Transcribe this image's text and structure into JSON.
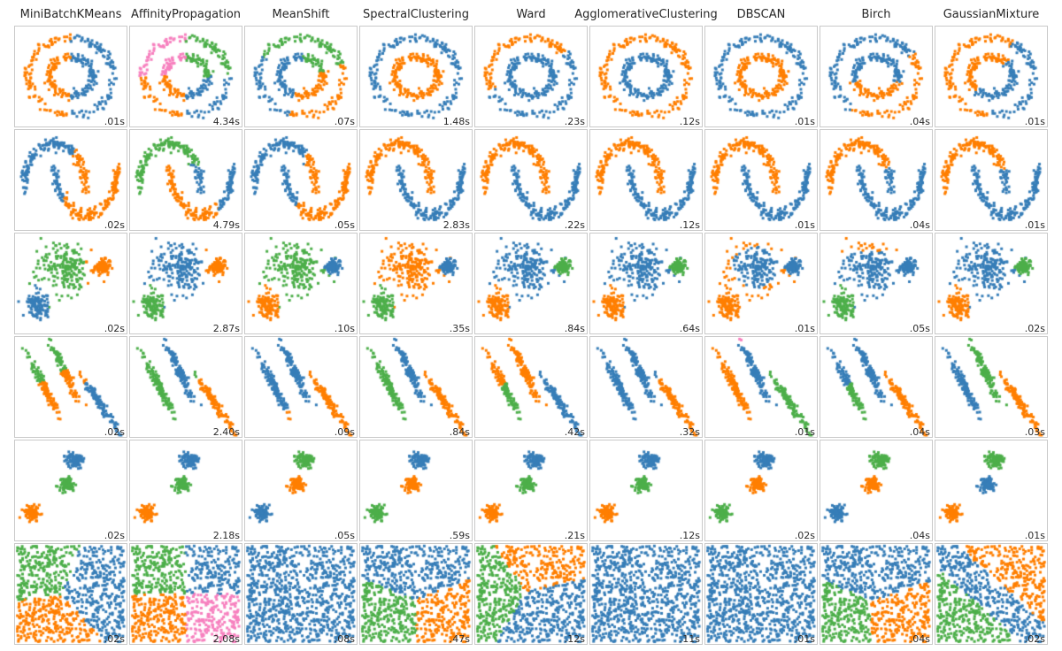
{
  "figure": {
    "background": "#ffffff",
    "cell_border_color": "#c9c9c9",
    "title_color": "#262626",
    "timing_text_color": "#2b2b2b"
  },
  "palette": {
    "blue": "#377eb8",
    "orange": "#ff7f00",
    "green": "#4daf4a",
    "pink": "#f781bf"
  },
  "chart_data": {
    "type": "scatter",
    "layout": "grid of 9 algorithm columns x 6 dataset rows, timing label bottom-right of each cell, no axes ticks, no legend",
    "columns": [
      "MiniBatchKMeans",
      "AffinityPropagation",
      "MeanShift",
      "SpectralClustering",
      "Ward",
      "AgglomerativeClustering",
      "DBSCAN",
      "Birch",
      "GaussianMixture"
    ],
    "rows": [
      "noisy_circles",
      "noisy_moons",
      "varied_variance_blobs",
      "anisotropic_blobs",
      "blobs",
      "no_structure_uniform"
    ],
    "timings": [
      [
        ".01s",
        "4.34s",
        ".07s",
        "1.48s",
        ".23s",
        ".12s",
        ".01s",
        ".04s",
        ".01s"
      ],
      [
        ".02s",
        "4.79s",
        ".05s",
        "2.83s",
        ".22s",
        ".12s",
        ".01s",
        ".04s",
        ".01s"
      ],
      [
        ".02s",
        "2.87s",
        ".10s",
        ".35s",
        ".84s",
        ".64s",
        ".01s",
        ".05s",
        ".02s"
      ],
      [
        ".02s",
        "2.40s",
        ".09s",
        ".84s",
        ".42s",
        ".32s",
        ".01s",
        ".04s",
        ".03s"
      ],
      [
        ".02s",
        "2.18s",
        ".05s",
        ".59s",
        ".21s",
        ".12s",
        ".02s",
        ".04s",
        ".01s"
      ],
      [
        ".02s",
        "2.08s",
        ".08s",
        ".47s",
        ".12s",
        ".11s",
        ".01s",
        ".04s",
        ".02s"
      ]
    ],
    "cell_rules": [
      [
        "circ-kmeans",
        "circ-affinity",
        "circ-meanshift",
        "circ-two-a",
        "circ-ward",
        "circ-two-b",
        "circ-two-a",
        "circ-birch",
        "circ-gmm"
      ],
      [
        "moon-kmeans",
        "moon-affinity",
        "moon-meanshift",
        "moon-perfect",
        "moon-perfect",
        "moon-perfect",
        "moon-perfect",
        "moon-birch",
        "moon-gmm"
      ],
      [
        "var-kmeans",
        "var-affinity",
        "var-meanshift",
        "var-spectral",
        "var-ward",
        "var-ward",
        "var-dbscan",
        "var-birch",
        "var-gmm"
      ],
      [
        "ani-kmeans",
        "ani-affinity",
        "ani-meanshift",
        "ani-spectral",
        "ani-ward",
        "ani-agglo",
        "ani-dbscan",
        "ani-birch",
        "ani-gmm"
      ],
      [
        "perm:blue,green,orange",
        "perm:blue,green,orange",
        "perm:green,orange,blue",
        "perm:blue,orange,green",
        "perm:blue,green,orange",
        "perm:blue,green,orange",
        "perm:blue,orange,green",
        "perm:green,orange,blue",
        "perm:green,blue,orange"
      ],
      [
        "vor:green@0.22,0.28|orange@0.30,0.78|blue@0.72,0.45",
        "vor:green@0.25,0.25|blue@0.75,0.25|orange@0.25,0.75|pink@0.75,0.75",
        "uni-single",
        "vor:blue@0.50,0.20|green@0.24,0.80|orange@0.76,0.80",
        "vor:green@0.13,0.42|orange@0.55,0.16|blue@0.68,0.72",
        "uni-single",
        "uni-single",
        "vor:blue@0.50,0.25|green@0.22,0.80|orange@0.70,0.78",
        "uni-gmm"
      ]
    ]
  }
}
